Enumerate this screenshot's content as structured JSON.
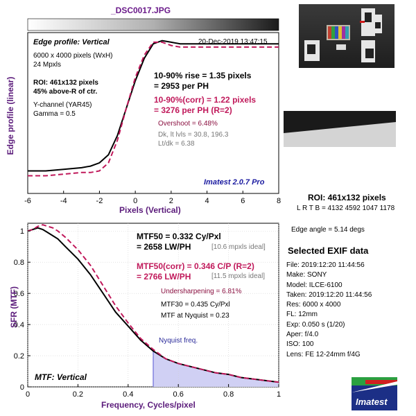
{
  "file_title": "_DSC0017.JPG",
  "colors": {
    "axis_label": "#5a1a7a",
    "measured": "#000000",
    "corrected": "#c0185a",
    "nyquist_fill": "#d0d0f4",
    "nyquist_line": "#6a6ad8",
    "watermark": "#1a1aa0"
  },
  "edge_panel": {
    "header": "Edge profile: Vertical",
    "timestamp": "20-Dec-2019 13:47:15",
    "info_lines": [
      "6000 x 4000 pixels (WxH)",
      "24 Mpxls"
    ],
    "roi_lines": [
      "ROI: 461x132 pixels",
      "45% above-R of ctr."
    ],
    "channel_lines": [
      "Y-channel  (YAR45)",
      "Gamma = 0.5"
    ],
    "rise_lines": [
      "10-90% rise = 1.35 pixels",
      "= 2953 per PH"
    ],
    "corr_lines": [
      "10-90%(corr) = 1.22 pixels",
      "= 3276 per PH  (R=2)"
    ],
    "overshoot": "Overshoot = 6.48%",
    "levels_lines": [
      "Dk, lt lvls = 30.8, 196.3",
      "Lt/dk = 6.38"
    ],
    "watermark": "Imatest 2.0.7 Pro",
    "ylabel": "Edge profile (linear)",
    "xlabel": "Pixels (Vertical)",
    "xticks": [
      "-6",
      "-4",
      "-2",
      "0",
      "2",
      "4",
      "6",
      "8"
    ]
  },
  "mtf_panel": {
    "mtf50_lines": [
      "MTF50 = 0.332 Cy/Pxl",
      "= 2658 LW/PH"
    ],
    "mtf50_ideal": "[10.6 mpxls ideal]",
    "corr_lines": [
      "MTF50(corr) = 0.346 C/P  (R=2)",
      "= 2766 LW/PH"
    ],
    "corr_ideal": "[11.5 mpxls ideal]",
    "undersharpening": "Undersharpening = 6.81%",
    "mtf30": "MTF30 = 0.435 Cy/Pxl",
    "nyquist_value": "MTF at Nyquist = 0.23",
    "nyquist_label": "Nyquist freq.",
    "footer": "MTF: Vertical",
    "ylabel": "SFR (MTF)",
    "xlabel": "Frequency, Cycles/pixel",
    "xticks": [
      "0",
      "0.2",
      "0.4",
      "0.6",
      "0.8",
      "1"
    ],
    "yticks": [
      "0",
      "0.2",
      "0.4",
      "0.6",
      "0.8",
      "1"
    ]
  },
  "roi_info": {
    "title": "ROI: 461x132 pixels",
    "coords": "L R  T B = 4132 4592  1047 1178",
    "edge_angle": "Edge angle = 5.14 degs"
  },
  "exif": {
    "title": "Selected EXIF data",
    "rows": [
      "File:  2019:12:20 11:44:56",
      "Make:  SONY",
      "Model:  ILCE-6100",
      "Taken:  2019:12:20 11:44:56",
      "Res:   6000 x 4000",
      "FL:   12mm",
      "Exp:   0.050 s  (1/20)",
      "Aper:   f/4.0",
      "ISO:   100",
      "Lens:  FE 12-24mm f/4G"
    ]
  },
  "logo": {
    "text": "Imatest"
  },
  "chart_data": [
    {
      "type": "line",
      "title": "Edge profile: Vertical",
      "xlabel": "Pixels (Vertical)",
      "ylabel": "Edge profile (linear)",
      "xlim": [
        -6,
        8
      ],
      "ylim": [
        0,
        1
      ],
      "series": [
        {
          "name": "10-90% rise = 1.35 pixels",
          "x": [
            -6,
            -5,
            -4,
            -3,
            -2.5,
            -2,
            -1.5,
            -1,
            -0.5,
            0,
            0.5,
            1,
            1.5,
            2,
            2.5,
            3,
            4,
            5,
            6,
            7,
            8
          ],
          "values": [
            0.14,
            0.14,
            0.15,
            0.16,
            0.17,
            0.19,
            0.24,
            0.36,
            0.53,
            0.7,
            0.84,
            0.93,
            0.95,
            0.94,
            0.93,
            0.93,
            0.93,
            0.93,
            0.93,
            0.93,
            0.93
          ]
        },
        {
          "name": "10-90%(corr) = 1.22 pixels",
          "x": [
            -6,
            -5,
            -4,
            -3,
            -2.5,
            -2,
            -1.5,
            -1,
            -0.5,
            0,
            0.5,
            1,
            1.5,
            2,
            2.5,
            3,
            4,
            5,
            6,
            7,
            8
          ],
          "values": [
            0.11,
            0.11,
            0.12,
            0.13,
            0.13,
            0.14,
            0.19,
            0.33,
            0.53,
            0.72,
            0.86,
            0.94,
            0.94,
            0.92,
            0.91,
            0.91,
            0.91,
            0.91,
            0.91,
            0.91,
            0.91
          ]
        }
      ]
    },
    {
      "type": "line",
      "title": "MTF: Vertical",
      "xlabel": "Frequency, Cycles/pixel",
      "ylabel": "SFR (MTF)",
      "xlim": [
        0,
        1
      ],
      "ylim": [
        0,
        1.05
      ],
      "nyquist": 0.5,
      "series": [
        {
          "name": "MTF50 = 0.332 Cy/Pxl",
          "x": [
            0,
            0.02,
            0.04,
            0.06,
            0.08,
            0.1,
            0.12,
            0.15,
            0.2,
            0.25,
            0.3,
            0.35,
            0.4,
            0.45,
            0.5,
            0.55,
            0.6,
            0.65,
            0.7,
            0.75,
            0.8,
            0.85,
            0.9,
            0.95,
            1.0
          ],
          "values": [
            1.0,
            1.01,
            1.02,
            1.01,
            0.99,
            0.97,
            0.95,
            0.9,
            0.82,
            0.72,
            0.6,
            0.48,
            0.39,
            0.3,
            0.23,
            0.18,
            0.15,
            0.13,
            0.11,
            0.09,
            0.08,
            0.06,
            0.05,
            0.04,
            0.03
          ]
        },
        {
          "name": "MTF50(corr) = 0.346 C/P  (R=2)",
          "x": [
            0,
            0.02,
            0.04,
            0.06,
            0.08,
            0.1,
            0.12,
            0.15,
            0.2,
            0.25,
            0.3,
            0.35,
            0.4,
            0.45,
            0.5,
            0.55,
            0.6,
            0.65,
            0.7,
            0.75,
            0.8,
            0.85,
            0.9,
            0.95,
            1.0
          ],
          "values": [
            1.0,
            1.01,
            1.03,
            1.04,
            1.03,
            1.02,
            1.0,
            0.96,
            0.88,
            0.78,
            0.65,
            0.52,
            0.41,
            0.31,
            0.24,
            0.18,
            0.15,
            0.13,
            0.11,
            0.09,
            0.08,
            0.06,
            0.05,
            0.04,
            0.03
          ]
        }
      ]
    }
  ]
}
